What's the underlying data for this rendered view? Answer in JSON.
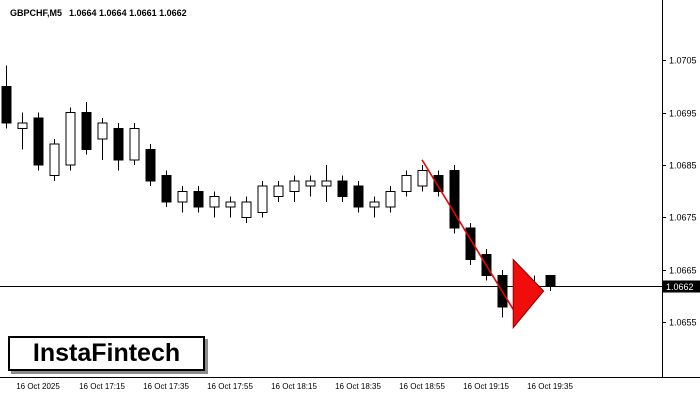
{
  "header": {
    "symbol": "GBPCHF,M5",
    "quotes": "1.0664 1.0664 1.0661 1.0662"
  },
  "watermark": {
    "text": "InstaFintech"
  },
  "price_axis": {
    "current_label": "1.0662"
  },
  "time_axis": {
    "labels": [
      "16 Oct 2025",
      "16 Oct 17:15",
      "16 Oct 17:35",
      "16 Oct 17:55",
      "16 Oct 18:15",
      "16 Oct 18:35",
      "16 Oct 18:55",
      "16 Oct 19:15",
      "16 Oct 19:35"
    ]
  },
  "chart_data": {
    "type": "candlestick",
    "symbol": "GBPCHF",
    "timeframe": "M5",
    "date": "16 Oct 2025",
    "current_bar_ohlc": [
      1.0664,
      1.0664,
      1.0661,
      1.0662
    ],
    "current_price": 1.0662,
    "price_ticks": [
      1.0705,
      1.0695,
      1.0685,
      1.0675,
      1.0665,
      1.0655
    ],
    "ylim": [
      1.065,
      1.071
    ],
    "grid": false,
    "bull_color": "#ffffff",
    "bear_color": "#000000",
    "outline_color": "#000000",
    "candles": [
      [
        "16:45",
        1.07,
        1.0704,
        1.0692,
        1.0693
      ],
      [
        "16:50",
        1.0692,
        1.0695,
        1.0688,
        1.0693
      ],
      [
        "16:55",
        1.0694,
        1.0695,
        1.0684,
        1.0685
      ],
      [
        "17:00",
        1.0683,
        1.069,
        1.0682,
        1.0689
      ],
      [
        "17:05",
        1.0685,
        1.0696,
        1.0684,
        1.0695
      ],
      [
        "17:10",
        1.0695,
        1.0697,
        1.0687,
        1.0688
      ],
      [
        "17:15",
        1.069,
        1.0694,
        1.0686,
        1.0693
      ],
      [
        "17:20",
        1.0692,
        1.0693,
        1.0684,
        1.0686
      ],
      [
        "17:25",
        1.0686,
        1.0693,
        1.0685,
        1.0692
      ],
      [
        "17:30",
        1.0688,
        1.0689,
        1.0681,
        1.0682
      ],
      [
        "17:35",
        1.0683,
        1.0684,
        1.0677,
        1.0678
      ],
      [
        "17:40",
        1.0678,
        1.0681,
        1.0676,
        1.068
      ],
      [
        "17:45",
        1.068,
        1.0681,
        1.0676,
        1.0677
      ],
      [
        "17:50",
        1.0677,
        1.068,
        1.0675,
        1.0679
      ],
      [
        "17:55",
        1.0677,
        1.0679,
        1.0675,
        1.0678
      ],
      [
        "18:00",
        1.0675,
        1.0679,
        1.0674,
        1.0678
      ],
      [
        "18:05",
        1.0676,
        1.0682,
        1.0675,
        1.0681
      ],
      [
        "18:10",
        1.0679,
        1.0682,
        1.0678,
        1.0681
      ],
      [
        "18:15",
        1.068,
        1.0683,
        1.0678,
        1.0682
      ],
      [
        "18:20",
        1.0681,
        1.0683,
        1.0679,
        1.0682
      ],
      [
        "18:25",
        1.0681,
        1.0685,
        1.0678,
        1.0682
      ],
      [
        "18:30",
        1.0682,
        1.0683,
        1.0678,
        1.0679
      ],
      [
        "18:35",
        1.0681,
        1.0682,
        1.0676,
        1.0677
      ],
      [
        "18:40",
        1.0677,
        1.0679,
        1.0675,
        1.0678
      ],
      [
        "18:45",
        1.0677,
        1.0681,
        1.0676,
        1.068
      ],
      [
        "18:50",
        1.068,
        1.0684,
        1.0679,
        1.0683
      ],
      [
        "18:55",
        1.0681,
        1.0685,
        1.068,
        1.0684
      ],
      [
        "19:00",
        1.0683,
        1.0684,
        1.0679,
        1.068
      ],
      [
        "19:05",
        1.0684,
        1.0685,
        1.0672,
        1.0673
      ],
      [
        "19:10",
        1.0673,
        1.0674,
        1.0666,
        1.0667
      ],
      [
        "19:15",
        1.0668,
        1.0669,
        1.0663,
        1.0664
      ],
      [
        "19:20",
        1.0664,
        1.0665,
        1.0656,
        1.0658
      ],
      [
        "19:25",
        1.0658,
        1.0663,
        1.0657,
        1.0662
      ],
      [
        "19:30",
        1.0662,
        1.0664,
        1.0659,
        1.066
      ],
      [
        "19:35",
        1.0664,
        1.0664,
        1.0661,
        1.0662
      ]
    ],
    "annotations": {
      "trendline": {
        "from": {
          "index": 26,
          "price": 1.0686
        },
        "to": {
          "index": 31.8,
          "price": 1.0657
        },
        "color": "#ee0000"
      },
      "signal_triangle": {
        "points": [
          {
            "index": 31.7,
            "price": 1.0667
          },
          {
            "index": 33.6,
            "price": 1.0661
          },
          {
            "index": 31.7,
            "price": 1.0654
          }
        ],
        "fill": "#f20d0d",
        "stroke": "#8b0000"
      }
    }
  }
}
